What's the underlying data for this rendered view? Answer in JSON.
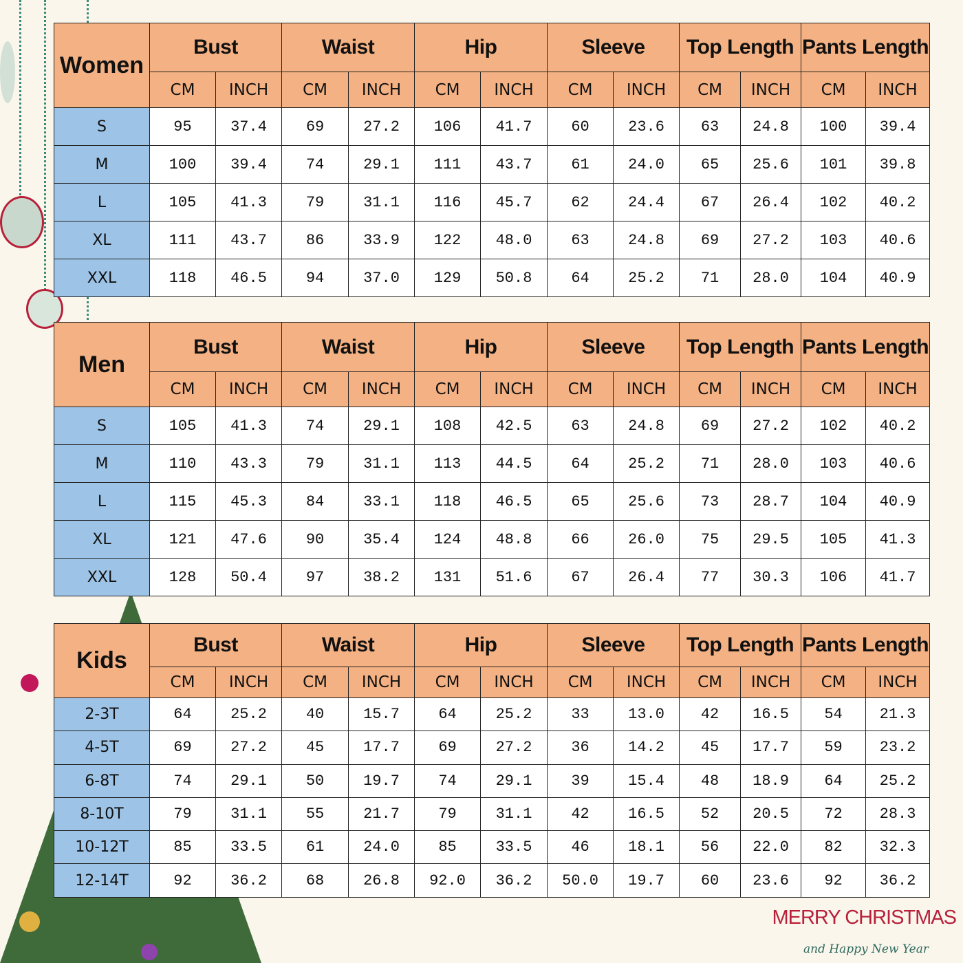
{
  "colors": {
    "header": "#f4b183",
    "size_cell": "#9dc3e6",
    "greeting_red": "#b8203a",
    "greeting_green": "#2f6b5e"
  },
  "groups": [
    "Bust",
    "Waist",
    "Hip",
    "Sleeve",
    "Top Length",
    "Pants Length"
  ],
  "units": [
    "CM",
    "INCH"
  ],
  "tables": [
    {
      "title": "Women",
      "rows": [
        [
          "S",
          "95",
          "37.4",
          "69",
          "27.2",
          "106",
          "41.7",
          "60",
          "23.6",
          "63",
          "24.8",
          "100",
          "39.4"
        ],
        [
          "M",
          "100",
          "39.4",
          "74",
          "29.1",
          "111",
          "43.7",
          "61",
          "24.0",
          "65",
          "25.6",
          "101",
          "39.8"
        ],
        [
          "L",
          "105",
          "41.3",
          "79",
          "31.1",
          "116",
          "45.7",
          "62",
          "24.4",
          "67",
          "26.4",
          "102",
          "40.2"
        ],
        [
          "XL",
          "111",
          "43.7",
          "86",
          "33.9",
          "122",
          "48.0",
          "63",
          "24.8",
          "69",
          "27.2",
          "103",
          "40.6"
        ],
        [
          "XXL",
          "118",
          "46.5",
          "94",
          "37.0",
          "129",
          "50.8",
          "64",
          "25.2",
          "71",
          "28.0",
          "104",
          "40.9"
        ]
      ]
    },
    {
      "title": "Men",
      "rows": [
        [
          "S",
          "105",
          "41.3",
          "74",
          "29.1",
          "108",
          "42.5",
          "63",
          "24.8",
          "69",
          "27.2",
          "102",
          "40.2"
        ],
        [
          "M",
          "110",
          "43.3",
          "79",
          "31.1",
          "113",
          "44.5",
          "64",
          "25.2",
          "71",
          "28.0",
          "103",
          "40.6"
        ],
        [
          "L",
          "115",
          "45.3",
          "84",
          "33.1",
          "118",
          "46.5",
          "65",
          "25.6",
          "73",
          "28.7",
          "104",
          "40.9"
        ],
        [
          "XL",
          "121",
          "47.6",
          "90",
          "35.4",
          "124",
          "48.8",
          "66",
          "26.0",
          "75",
          "29.5",
          "105",
          "41.3"
        ],
        [
          "XXL",
          "128",
          "50.4",
          "97",
          "38.2",
          "131",
          "51.6",
          "67",
          "26.4",
          "77",
          "30.3",
          "106",
          "41.7"
        ]
      ]
    },
    {
      "title": "Kids",
      "rows": [
        [
          "2-3T",
          "64",
          "25.2",
          "40",
          "15.7",
          "64",
          "25.2",
          "33",
          "13.0",
          "42",
          "16.5",
          "54",
          "21.3"
        ],
        [
          "4-5T",
          "69",
          "27.2",
          "45",
          "17.7",
          "69",
          "27.2",
          "36",
          "14.2",
          "45",
          "17.7",
          "59",
          "23.2"
        ],
        [
          "6-8T",
          "74",
          "29.1",
          "50",
          "19.7",
          "74",
          "29.1",
          "39",
          "15.4",
          "48",
          "18.9",
          "64",
          "25.2"
        ],
        [
          "8-10T",
          "79",
          "31.1",
          "55",
          "21.7",
          "79",
          "31.1",
          "42",
          "16.5",
          "52",
          "20.5",
          "72",
          "28.3"
        ],
        [
          "10-12T",
          "85",
          "33.5",
          "61",
          "24.0",
          "85",
          "33.5",
          "46",
          "18.1",
          "56",
          "22.0",
          "82",
          "32.3"
        ],
        [
          "12-14T",
          "92",
          "36.2",
          "68",
          "26.8",
          "92.0",
          "36.2",
          "50.0",
          "19.7",
          "60",
          "23.6",
          "92",
          "36.2"
        ]
      ]
    }
  ],
  "greeting": {
    "main": "MERRY CHRISTMAS",
    "sub": "and Happy New Year"
  }
}
